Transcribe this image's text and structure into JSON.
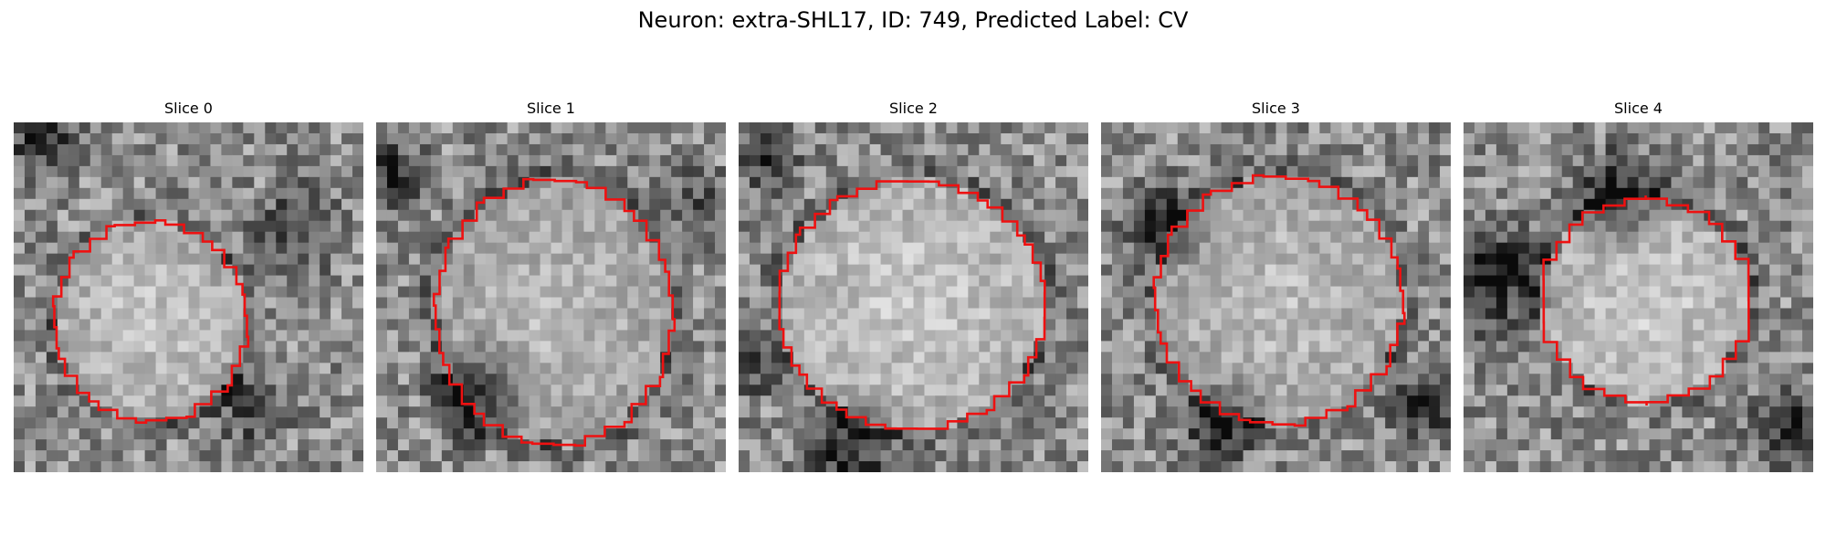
{
  "figure": {
    "title": "Neuron: extra-SHL17, ID: 749, Predicted Label: CV"
  },
  "panels": [
    {
      "title": "Slice 0"
    },
    {
      "title": "Slice 1"
    },
    {
      "title": "Slice 2"
    },
    {
      "title": "Slice 3"
    },
    {
      "title": "Slice 4"
    }
  ],
  "colors": {
    "contour": "#ee1111",
    "background": "#ffffff"
  }
}
